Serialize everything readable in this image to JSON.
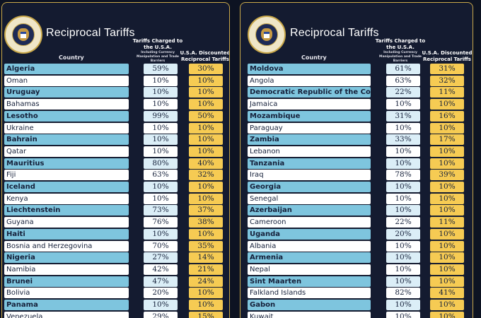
{
  "panels": [
    {
      "title": "Reciprocal Tariffs",
      "seal_text": "PRESIDENT OF THE UNITED STATES",
      "headers": {
        "country": "Country",
        "charged": "Tariffs Charged to the U.S.A.",
        "charged_sub": "Including Currency Manipulation and Trade Barriers",
        "discounted": "U.S.A. Discounted Reciprocal Tariffs"
      },
      "rows": [
        {
          "country": "Algeria",
          "charged": "59%",
          "discounted": "30%"
        },
        {
          "country": "Oman",
          "charged": "10%",
          "discounted": "10%"
        },
        {
          "country": "Uruguay",
          "charged": "10%",
          "discounted": "10%"
        },
        {
          "country": "Bahamas",
          "charged": "10%",
          "discounted": "10%"
        },
        {
          "country": "Lesotho",
          "charged": "99%",
          "discounted": "50%"
        },
        {
          "country": "Ukraine",
          "charged": "10%",
          "discounted": "10%"
        },
        {
          "country": "Bahrain",
          "charged": "10%",
          "discounted": "10%"
        },
        {
          "country": "Qatar",
          "charged": "10%",
          "discounted": "10%"
        },
        {
          "country": "Mauritius",
          "charged": "80%",
          "discounted": "40%"
        },
        {
          "country": "Fiji",
          "charged": "63%",
          "discounted": "32%"
        },
        {
          "country": "Iceland",
          "charged": "10%",
          "discounted": "10%"
        },
        {
          "country": "Kenya",
          "charged": "10%",
          "discounted": "10%"
        },
        {
          "country": "Liechtenstein",
          "charged": "73%",
          "discounted": "37%"
        },
        {
          "country": "Guyana",
          "charged": "76%",
          "discounted": "38%"
        },
        {
          "country": "Haiti",
          "charged": "10%",
          "discounted": "10%"
        },
        {
          "country": "Bosnia and Herzegovina",
          "charged": "70%",
          "discounted": "35%"
        },
        {
          "country": "Nigeria",
          "charged": "27%",
          "discounted": "14%"
        },
        {
          "country": "Namibia",
          "charged": "42%",
          "discounted": "21%"
        },
        {
          "country": "Brunei",
          "charged": "47%",
          "discounted": "24%"
        },
        {
          "country": "Bolivia",
          "charged": "20%",
          "discounted": "10%"
        },
        {
          "country": "Panama",
          "charged": "10%",
          "discounted": "10%"
        },
        {
          "country": "Venezuela",
          "charged": "29%",
          "discounted": "15%"
        }
      ]
    },
    {
      "title": "Reciprocal Tariffs",
      "seal_text": "PRESIDENT OF THE UNITED STATES",
      "headers": {
        "country": "Country",
        "charged": "Tariffs Charged to the U.S.A.",
        "charged_sub": "Including Currency Manipulation and Trade Barriers",
        "discounted": "U.S.A. Discounted Reciprocal Tariffs"
      },
      "rows": [
        {
          "country": "Moldova",
          "charged": "61%",
          "discounted": "31%"
        },
        {
          "country": "Angola",
          "charged": "63%",
          "discounted": "32%"
        },
        {
          "country": "Democratic Republic of the Congo",
          "charged": "22%",
          "discounted": "11%"
        },
        {
          "country": "Jamaica",
          "charged": "10%",
          "discounted": "10%"
        },
        {
          "country": "Mozambique",
          "charged": "31%",
          "discounted": "16%"
        },
        {
          "country": "Paraguay",
          "charged": "10%",
          "discounted": "10%"
        },
        {
          "country": "Zambia",
          "charged": "33%",
          "discounted": "17%"
        },
        {
          "country": "Lebanon",
          "charged": "10%",
          "discounted": "10%"
        },
        {
          "country": "Tanzania",
          "charged": "10%",
          "discounted": "10%"
        },
        {
          "country": "Iraq",
          "charged": "78%",
          "discounted": "39%"
        },
        {
          "country": "Georgia",
          "charged": "10%",
          "discounted": "10%"
        },
        {
          "country": "Senegal",
          "charged": "10%",
          "discounted": "10%"
        },
        {
          "country": "Azerbaijan",
          "charged": "10%",
          "discounted": "10%"
        },
        {
          "country": "Cameroon",
          "charged": "22%",
          "discounted": "11%"
        },
        {
          "country": "Uganda",
          "charged": "20%",
          "discounted": "10%"
        },
        {
          "country": "Albania",
          "charged": "10%",
          "discounted": "10%"
        },
        {
          "country": "Armenia",
          "charged": "10%",
          "discounted": "10%"
        },
        {
          "country": "Nepal",
          "charged": "10%",
          "discounted": "10%"
        },
        {
          "country": "Sint Maarten",
          "charged": "10%",
          "discounted": "10%"
        },
        {
          "country": "Falkland Islands",
          "charged": "82%",
          "discounted": "41%"
        },
        {
          "country": "Gabon",
          "charged": "10%",
          "discounted": "10%"
        },
        {
          "country": "Kuwait",
          "charged": "10%",
          "discounted": "10%"
        }
      ]
    }
  ]
}
